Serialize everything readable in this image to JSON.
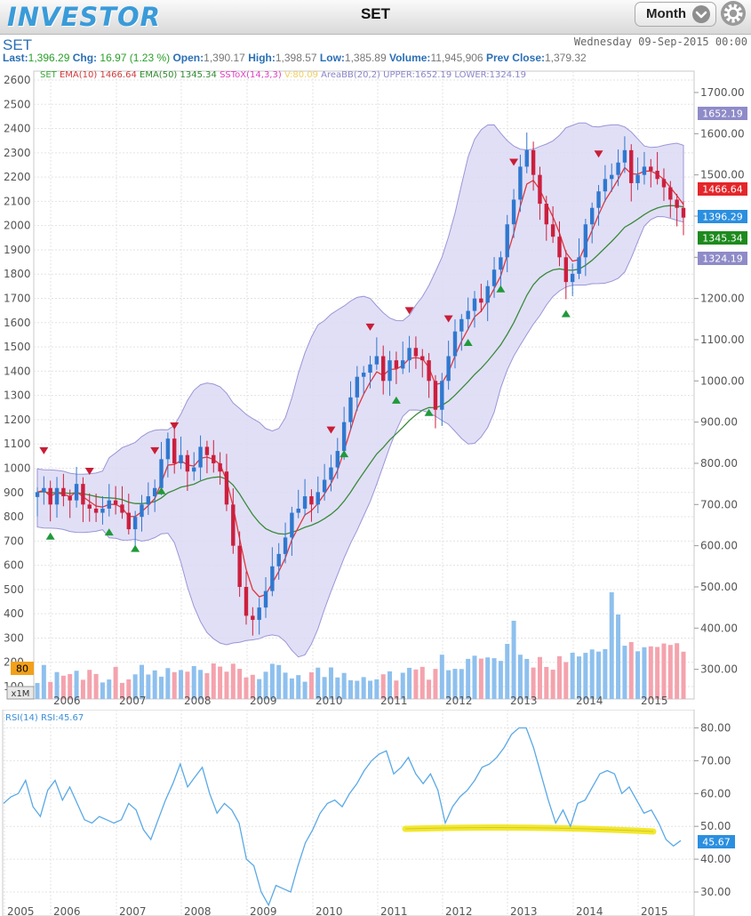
{
  "app": {
    "logo": "INVESTOR",
    "title": "SET",
    "period": "Month"
  },
  "header": {
    "symbol": "SET",
    "datetime": "Wednesday 09-Sep-2015 00:00",
    "last_label": "Last:",
    "last": "1,396.29",
    "chg_label": "Chg:",
    "chg": "16.97 (1.23 %)",
    "open_label": "Open:",
    "open": "1,390.17",
    "high_label": "High:",
    "high": "1,398.57",
    "low_label": "Low:",
    "low": "1,385.89",
    "volume_label": "Volume:",
    "volume": "11,945,906",
    "prev_label": "Prev Close:",
    "prev": "1,379.32"
  },
  "legend": {
    "set": "SET",
    "ema10": "EMA(10) 1466.64",
    "ema50": "EMA(50) 1345.34",
    "sstox": "SSToX(14,3,3)",
    "v": "V:80.09",
    "bb": "AreaBB(20,2) UPPER:1652.19 LOWER:1324.19"
  },
  "badges": {
    "upper": "1652.19",
    "ema10": "1466.64",
    "last": "1396.29",
    "ema50": "1345.34",
    "lower": "1324.19",
    "stoch": "80",
    "vol_scale": "x1M"
  },
  "rsi": {
    "legend_name": "RSI(14)",
    "legend_value": "RSI:45.67",
    "last": "45.67"
  },
  "colors": {
    "up": "#2f78cf",
    "down": "#cc1f3e",
    "ema10": "#e0363c",
    "ema50": "#3a8a3a",
    "bb_fill": "#dcd9f5",
    "bb_line": "#9a95d6",
    "rsi": "#5aa9e6",
    "highlight": "#f2e830"
  },
  "chart_data": [
    {
      "type": "candlestick",
      "title": "SET",
      "period": "monthly",
      "x_ticks": [
        "2006",
        "2007",
        "2008",
        "2009",
        "2010",
        "2011",
        "2012",
        "2013",
        "2014",
        "2015"
      ],
      "left_axis": {
        "ticks": [
          100,
          200,
          300,
          400,
          500,
          600,
          700,
          800,
          900,
          1000,
          1100,
          1200,
          1300,
          1400,
          1500,
          1600,
          1700,
          1800,
          1900,
          2000,
          2100,
          2200,
          2300,
          2400,
          2500,
          2600
        ]
      },
      "right_axis": {
        "ticks": [
          "300.00",
          "400.00",
          "500.00",
          "600.00",
          "700.00",
          "800.00",
          "900.00",
          "1000.00",
          "1100.00",
          "1200.00",
          "1300.00",
          "1400.00",
          "1500.00",
          "1600.00",
          "1700.00"
        ],
        "ylim": [
          280,
          1720
        ]
      },
      "close_approx": [
        730,
        740,
        700,
        740,
        720,
        710,
        750,
        700,
        690,
        680,
        690,
        710,
        700,
        680,
        640,
        670,
        700,
        720,
        740,
        810,
        860,
        800,
        820,
        780,
        790,
        840,
        820,
        800,
        780,
        700,
        600,
        500,
        430,
        420,
        450,
        490,
        550,
        580,
        620,
        680,
        690,
        720,
        700,
        730,
        760,
        790,
        830,
        900,
        960,
        1010,
        1020,
        1040,
        1060,
        1000,
        1050,
        1030,
        1050,
        1080,
        1060,
        1050,
        1000,
        930,
        1000,
        1060,
        1120,
        1150,
        1170,
        1200,
        1190,
        1230,
        1270,
        1300,
        1380,
        1440,
        1520,
        1560,
        1500,
        1430,
        1380,
        1350,
        1300,
        1240,
        1260,
        1300,
        1380,
        1420,
        1460,
        1490,
        1500,
        1530,
        1560,
        1480,
        1500,
        1520,
        1510,
        1490,
        1470,
        1440,
        1420,
        1396.29
      ],
      "ema10_last": 1466.64,
      "ema50_last": 1345.34,
      "bollinger": {
        "period": 20,
        "k": 2,
        "upper_last": 1652.19,
        "lower_last": 1324.19
      },
      "volume_peak_approx": "x1M scale, highest bars around 2013 and late 2014"
    },
    {
      "type": "line",
      "title": "RSI(14)",
      "x_ticks": [
        "2005",
        "2006",
        "2007",
        "2008",
        "2009",
        "2010",
        "2011",
        "2012",
        "2013",
        "2014",
        "2015"
      ],
      "y_ticks": [
        "30.00",
        "40.00",
        "50.00",
        "60.00",
        "70.00",
        "80.00"
      ],
      "ylim": [
        25,
        83
      ],
      "values_approx": [
        57,
        59,
        60,
        64,
        56,
        53,
        61,
        64,
        58,
        62,
        57,
        52,
        51,
        53,
        52,
        51,
        52,
        57,
        55,
        49,
        46,
        52,
        58,
        63,
        69,
        62,
        65,
        68,
        60,
        54,
        57,
        55,
        51,
        40,
        38,
        30,
        26,
        32,
        31,
        30,
        38,
        45,
        49,
        54,
        57,
        58,
        56,
        60,
        63,
        67,
        70,
        72,
        73,
        66,
        68,
        71,
        66,
        63,
        66,
        61,
        51,
        56,
        59,
        61,
        64,
        68,
        69,
        71,
        74,
        78,
        80,
        80,
        74,
        66,
        58,
        51,
        55,
        50,
        57,
        58,
        62,
        66,
        67,
        66,
        60,
        62,
        58,
        54,
        55,
        51,
        46,
        44,
        45.67
      ],
      "last": 45.67
    }
  ]
}
